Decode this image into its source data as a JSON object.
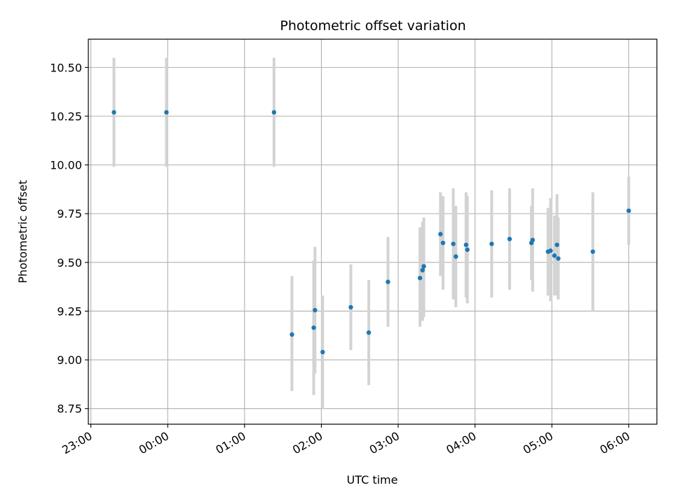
{
  "chart_data": {
    "type": "scatter",
    "title": "Photometric offset variation",
    "xlabel": "UTC time",
    "ylabel": "Photometric offset",
    "xlim": [
      "22:58",
      "06:22"
    ],
    "ylim": [
      8.67,
      10.645
    ],
    "grid": true,
    "x_ticks": [
      "23:00",
      "00:00",
      "01:00",
      "02:00",
      "03:00",
      "04:00",
      "05:00",
      "06:00"
    ],
    "y_ticks": [
      "8.75",
      "9.00",
      "9.25",
      "9.50",
      "9.75",
      "10.00",
      "10.25",
      "10.50"
    ],
    "colors": {
      "marker": "#1f77b4",
      "errorbar": "#d3d3d3",
      "grid": "#b0b0b0"
    },
    "series": [
      {
        "points": [
          {
            "x": "23:18",
            "y": 10.27,
            "ylo": 9.99,
            "yhi": 10.55
          },
          {
            "x": "23:59",
            "y": 10.27,
            "ylo": 9.99,
            "yhi": 10.55
          },
          {
            "x": "01:23",
            "y": 10.27,
            "ylo": 9.99,
            "yhi": 10.55
          },
          {
            "x": "01:37",
            "y": 9.13,
            "ylo": 8.84,
            "yhi": 9.43
          },
          {
            "x": "01:54",
            "y": 9.165,
            "ylo": 8.82,
            "yhi": 9.51
          },
          {
            "x": "01:55",
            "y": 9.255,
            "ylo": 8.93,
            "yhi": 9.58
          },
          {
            "x": "02:01",
            "y": 9.04,
            "ylo": 8.75,
            "yhi": 9.33
          },
          {
            "x": "02:23",
            "y": 9.27,
            "ylo": 9.05,
            "yhi": 9.49
          },
          {
            "x": "02:37",
            "y": 9.14,
            "ylo": 8.87,
            "yhi": 9.41
          },
          {
            "x": "02:52",
            "y": 9.4,
            "ylo": 9.17,
            "yhi": 9.63
          },
          {
            "x": "03:17",
            "y": 9.42,
            "ylo": 9.17,
            "yhi": 9.68
          },
          {
            "x": "03:19",
            "y": 9.46,
            "ylo": 9.2,
            "yhi": 9.71
          },
          {
            "x": "03:20",
            "y": 9.48,
            "ylo": 9.22,
            "yhi": 9.73
          },
          {
            "x": "03:33",
            "y": 9.645,
            "ylo": 9.43,
            "yhi": 9.86
          },
          {
            "x": "03:35",
            "y": 9.6,
            "ylo": 9.36,
            "yhi": 9.84
          },
          {
            "x": "03:43",
            "y": 9.595,
            "ylo": 9.31,
            "yhi": 9.88
          },
          {
            "x": "03:45",
            "y": 9.53,
            "ylo": 9.27,
            "yhi": 9.79
          },
          {
            "x": "03:53",
            "y": 9.59,
            "ylo": 9.32,
            "yhi": 9.86
          },
          {
            "x": "03:54",
            "y": 9.565,
            "ylo": 9.29,
            "yhi": 9.84
          },
          {
            "x": "04:13",
            "y": 9.595,
            "ylo": 9.32,
            "yhi": 9.87
          },
          {
            "x": "04:27",
            "y": 9.62,
            "ylo": 9.36,
            "yhi": 9.88
          },
          {
            "x": "04:44",
            "y": 9.6,
            "ylo": 9.41,
            "yhi": 9.79
          },
          {
            "x": "04:45",
            "y": 9.615,
            "ylo": 9.35,
            "yhi": 9.88
          },
          {
            "x": "04:57",
            "y": 9.555,
            "ylo": 9.33,
            "yhi": 9.78
          },
          {
            "x": "04:59",
            "y": 9.56,
            "ylo": 9.3,
            "yhi": 9.83
          },
          {
            "x": "05:02",
            "y": 9.535,
            "ylo": 9.33,
            "yhi": 9.74
          },
          {
            "x": "05:04",
            "y": 9.59,
            "ylo": 9.33,
            "yhi": 9.85
          },
          {
            "x": "05:05",
            "y": 9.52,
            "ylo": 9.31,
            "yhi": 9.73
          },
          {
            "x": "05:32",
            "y": 9.555,
            "ylo": 9.25,
            "yhi": 9.86
          },
          {
            "x": "06:00",
            "y": 9.765,
            "ylo": 9.59,
            "yhi": 9.94
          }
        ]
      }
    ]
  }
}
